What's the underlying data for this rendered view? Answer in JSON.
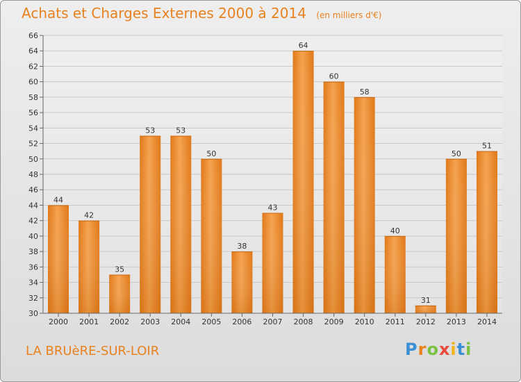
{
  "header": {
    "title": "Achats et Charges Externes 2000 à 2014",
    "subtitle": "(en milliers d'€)"
  },
  "footer": {
    "commune": "LA BRUèRE-SUR-LOIR",
    "logo_letters": [
      "P",
      "r",
      "o",
      "x",
      "i",
      "t",
      "i"
    ],
    "logo_colors": [
      "#3a8fd6",
      "#e8811e",
      "#7cc242",
      "#e84b3c",
      "#f2b418",
      "#3a8fd6",
      "#7cc242"
    ]
  },
  "chart_data": {
    "type": "bar",
    "categories": [
      "2000",
      "2001",
      "2002",
      "2003",
      "2004",
      "2005",
      "2006",
      "2007",
      "2008",
      "2009",
      "2010",
      "2011",
      "2012",
      "2013",
      "2014"
    ],
    "values": [
      44,
      42,
      35,
      53,
      53,
      50,
      38,
      43,
      64,
      60,
      58,
      40,
      31,
      50,
      51
    ],
    "title": "Achats et Charges Externes 2000 à 2014",
    "subtitle": "(en milliers d'€)",
    "xlabel": "",
    "ylabel": "",
    "ylim": [
      30,
      66
    ],
    "yticks": [
      30,
      32,
      34,
      36,
      38,
      40,
      42,
      44,
      46,
      48,
      50,
      52,
      54,
      56,
      58,
      60,
      62,
      64,
      66
    ],
    "grid": true,
    "bar_color": "#f0913a"
  }
}
